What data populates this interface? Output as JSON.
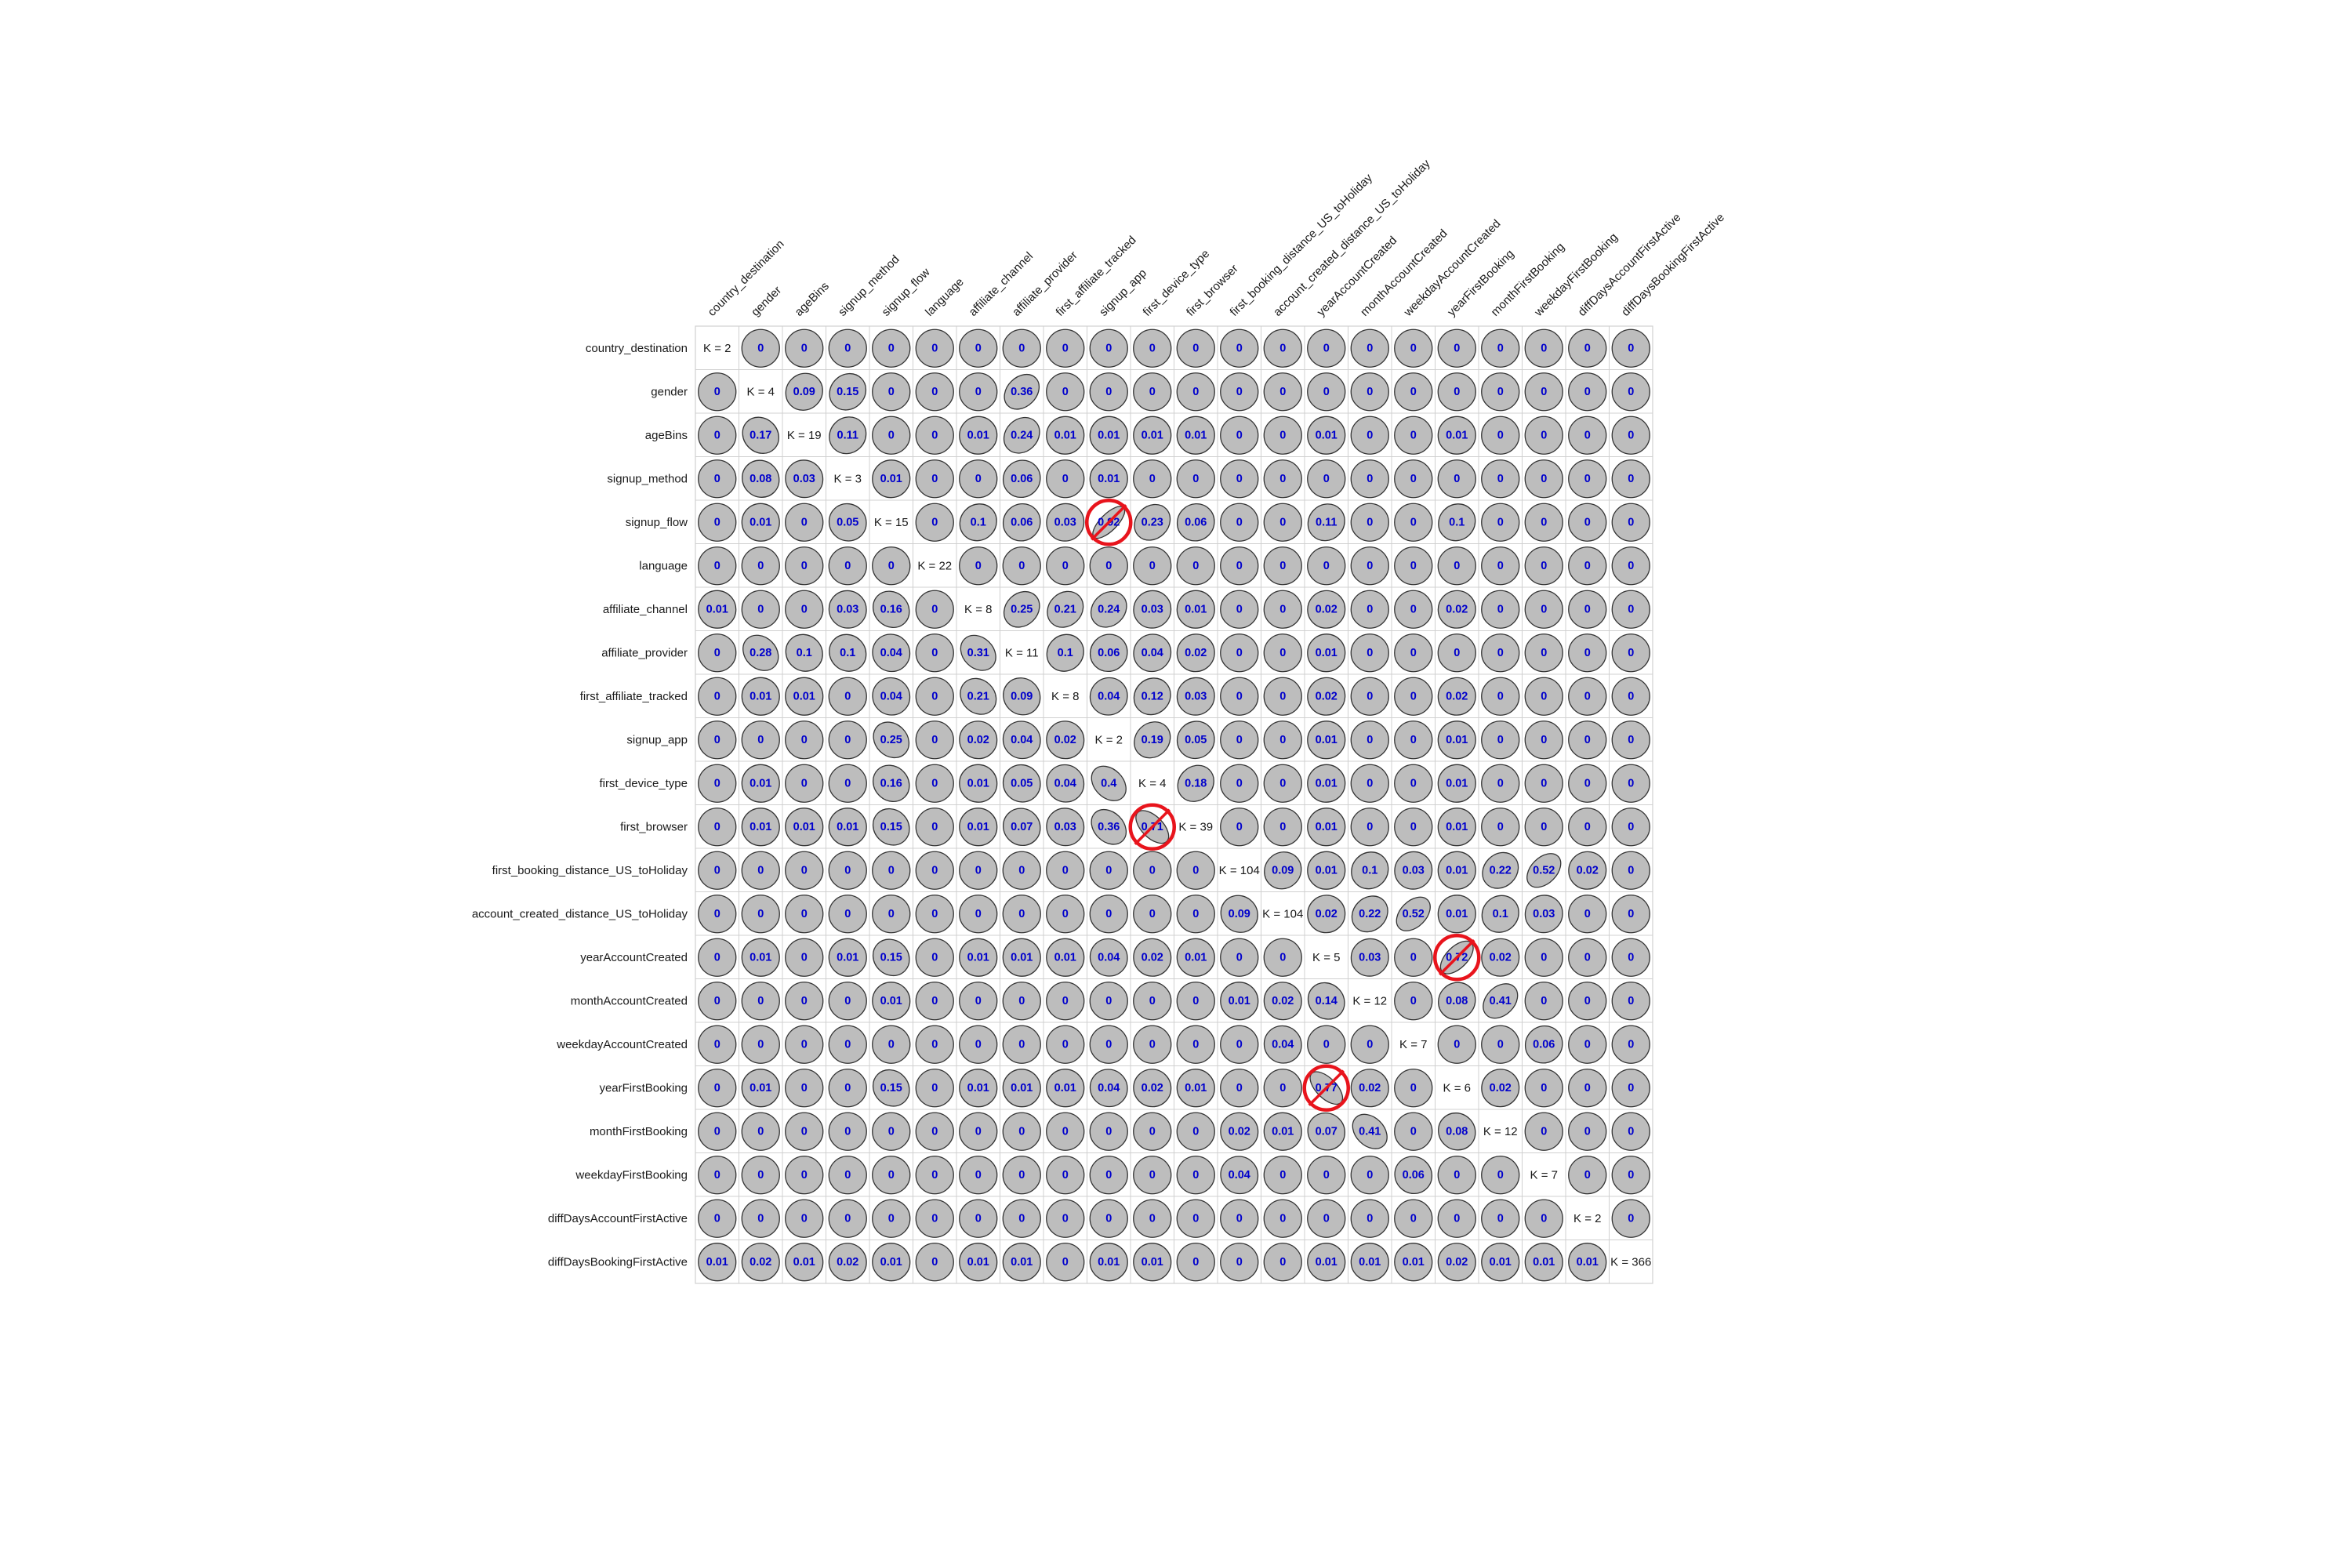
{
  "chart_data": {
    "type": "heatmap",
    "title": "",
    "variables": [
      "country_destination",
      "gender",
      "ageBins",
      "signup_method",
      "signup_flow",
      "language",
      "affiliate_channel",
      "affiliate_provider",
      "first_affiliate_tracked",
      "signup_app",
      "first_device_type",
      "first_browser",
      "first_booking_distance_US_toHoliday",
      "account_created_distance_US_toHoliday",
      "yearAccountCreated",
      "monthAccountCreated",
      "weekdayAccountCreated",
      "yearFirstBooking",
      "monthFirstBooking",
      "weekdayFirstBooking",
      "diffDaysAccountFirstActive",
      "diffDaysBookingFirstActive"
    ],
    "diagonal_labels": [
      "K = 2",
      "K = 4",
      "K = 19",
      "K = 3",
      "K = 15",
      "K = 22",
      "K = 8",
      "K = 11",
      "K = 8",
      "K = 2",
      "K = 4",
      "K = 39",
      "K = 104",
      "K = 104",
      "K = 5",
      "K = 12",
      "K = 7",
      "K = 6",
      "K = 12",
      "K = 7",
      "K = 2",
      "K = 366"
    ],
    "values": [
      [
        null,
        0,
        0,
        0,
        0,
        0,
        0,
        0,
        0,
        0,
        0,
        0,
        0,
        0,
        0,
        0,
        0,
        0,
        0,
        0,
        0,
        0
      ],
      [
        0,
        null,
        0.09,
        0.15,
        0,
        0,
        0,
        0.36,
        0,
        0,
        0,
        0,
        0,
        0,
        0,
        0,
        0,
        0,
        0,
        0,
        0,
        0
      ],
      [
        0,
        0.17,
        null,
        0.11,
        0,
        0,
        0.01,
        0.24,
        0.01,
        0.01,
        0.01,
        0.01,
        0,
        0,
        0.01,
        0,
        0,
        0.01,
        0,
        0,
        0,
        0
      ],
      [
        0,
        0.08,
        0.03,
        null,
        0.01,
        0,
        0,
        0.06,
        0,
        0.01,
        0,
        0,
        0,
        0,
        0,
        0,
        0,
        0,
        0,
        0,
        0,
        0
      ],
      [
        0,
        0.01,
        0,
        0.05,
        null,
        0,
        0.1,
        0.06,
        0.03,
        0.92,
        0.23,
        0.06,
        0,
        0,
        0.11,
        0,
        0,
        0.1,
        0,
        0,
        0,
        0
      ],
      [
        0,
        0,
        0,
        0,
        0,
        null,
        0,
        0,
        0,
        0,
        0,
        0,
        0,
        0,
        0,
        0,
        0,
        0,
        0,
        0,
        0,
        0
      ],
      [
        0.01,
        0,
        0,
        0.03,
        0.16,
        0,
        null,
        0.25,
        0.21,
        0.24,
        0.03,
        0.01,
        0,
        0,
        0.02,
        0,
        0,
        0.02,
        0,
        0,
        0,
        0
      ],
      [
        0,
        0.28,
        0.1,
        0.1,
        0.04,
        0,
        0.31,
        null,
        0.1,
        0.06,
        0.04,
        0.02,
        0,
        0,
        0.01,
        0,
        0,
        0,
        0,
        0,
        0,
        0
      ],
      [
        0,
        0.01,
        0.01,
        0,
        0.04,
        0,
        0.21,
        0.09,
        null,
        0.04,
        0.12,
        0.03,
        0,
        0,
        0.02,
        0,
        0,
        0.02,
        0,
        0,
        0,
        0
      ],
      [
        0,
        0,
        0,
        0,
        0.25,
        0,
        0.02,
        0.04,
        0.02,
        null,
        0.19,
        0.05,
        0,
        0,
        0.01,
        0,
        0,
        0.01,
        0,
        0,
        0,
        0
      ],
      [
        0,
        0.01,
        0,
        0,
        0.16,
        0,
        0.01,
        0.05,
        0.04,
        0.4,
        null,
        0.18,
        0,
        0,
        0.01,
        0,
        0,
        0.01,
        0,
        0,
        0,
        0
      ],
      [
        0,
        0.01,
        0.01,
        0.01,
        0.15,
        0,
        0.01,
        0.07,
        0.03,
        0.36,
        0.71,
        null,
        0,
        0,
        0.01,
        0,
        0,
        0.01,
        0,
        0,
        0,
        0
      ],
      [
        0,
        0,
        0,
        0,
        0,
        0,
        0,
        0,
        0,
        0,
        0,
        0,
        null,
        0.09,
        0.01,
        0.1,
        0.03,
        0.01,
        0.22,
        0.52,
        0.02,
        0
      ],
      [
        0,
        0,
        0,
        0,
        0,
        0,
        0,
        0,
        0,
        0,
        0,
        0,
        0.09,
        null,
        0.02,
        0.22,
        0.52,
        0.01,
        0.1,
        0.03,
        0,
        0
      ],
      [
        0,
        0.01,
        0,
        0.01,
        0.15,
        0,
        0.01,
        0.01,
        0.01,
        0.04,
        0.02,
        0.01,
        0,
        0,
        null,
        0.03,
        0,
        0.72,
        0.02,
        0,
        0,
        0
      ],
      [
        0,
        0,
        0,
        0,
        0.01,
        0,
        0,
        0,
        0,
        0,
        0,
        0,
        0.01,
        0.02,
        0.14,
        null,
        0,
        0.08,
        0.41,
        0,
        0,
        0
      ],
      [
        0,
        0,
        0,
        0,
        0,
        0,
        0,
        0,
        0,
        0,
        0,
        0,
        0,
        0.04,
        0,
        0,
        null,
        0,
        0,
        0.06,
        0,
        0
      ],
      [
        0,
        0.01,
        0,
        0,
        0.15,
        0,
        0.01,
        0.01,
        0.01,
        0.04,
        0.02,
        0.01,
        0,
        0,
        0.77,
        0.02,
        0,
        null,
        0.02,
        0,
        0,
        0
      ],
      [
        0,
        0,
        0,
        0,
        0,
        0,
        0,
        0,
        0,
        0,
        0,
        0,
        0.02,
        0.01,
        0.07,
        0.41,
        0,
        0.08,
        null,
        0,
        0,
        0
      ],
      [
        0,
        0,
        0,
        0,
        0,
        0,
        0,
        0,
        0,
        0,
        0,
        0,
        0.04,
        0,
        0,
        0,
        0.06,
        0,
        0,
        null,
        0,
        0
      ],
      [
        0,
        0,
        0,
        0,
        0,
        0,
        0,
        0,
        0,
        0,
        0,
        0,
        0,
        0,
        0,
        0,
        0,
        0,
        0,
        0,
        null,
        0
      ],
      [
        0.01,
        0.02,
        0.01,
        0.02,
        0.01,
        0,
        0.01,
        0.01,
        0,
        0.01,
        0.01,
        0,
        0,
        0,
        0.01,
        0.01,
        0.01,
        0.02,
        0.01,
        0.01,
        0.01,
        null
      ]
    ],
    "highlighted_cells": [
      [
        4,
        9
      ],
      [
        11,
        10
      ],
      [
        14,
        17
      ],
      [
        17,
        14
      ]
    ],
    "colors": {
      "ellipse_fill": "#bdbdbd",
      "ellipse_stroke": "#333333",
      "value_text": "#0000cc",
      "highlight": "#e8141c",
      "grid": "#d0d0d0"
    }
  }
}
